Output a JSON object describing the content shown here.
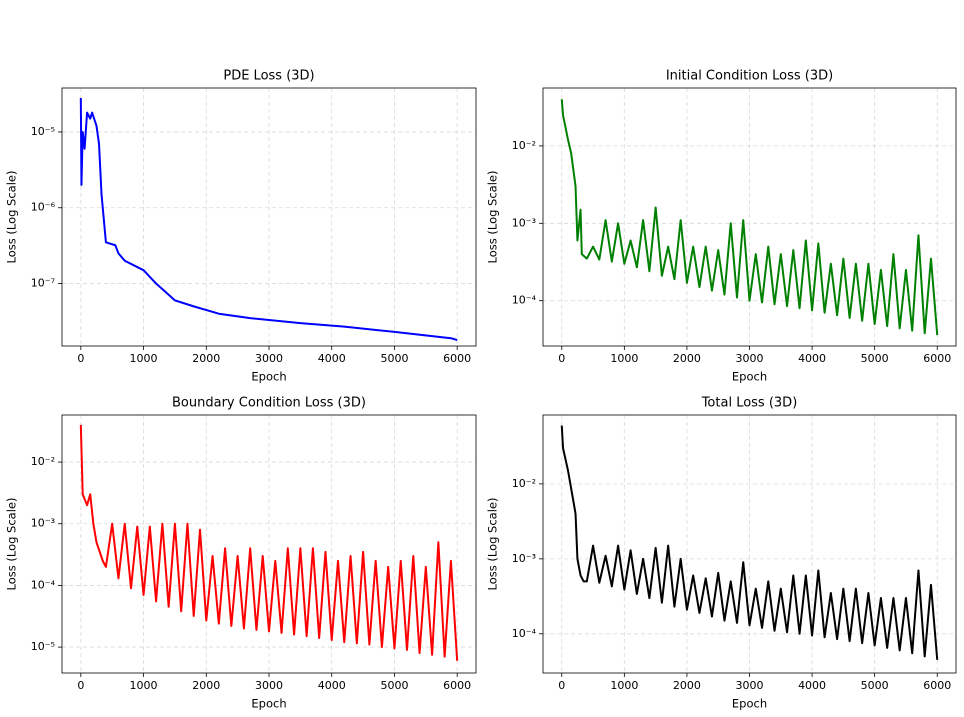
{
  "chart_data": [
    {
      "type": "line",
      "title": "PDE Loss (3D)",
      "xlabel": "Epoch",
      "ylabel": "Loss (Log Scale)",
      "color": "#0000ff",
      "yscale": "log",
      "grid": true,
      "x": [
        0,
        10,
        30,
        60,
        100,
        150,
        180,
        250,
        290,
        330,
        400,
        550,
        600,
        700,
        1000,
        1200,
        1500,
        1800,
        2200,
        2700,
        3500,
        4200,
        5000,
        5900,
        6000
      ],
      "values": [
        2.8e-05,
        2e-06,
        1e-05,
        6e-06,
        1.8e-05,
        1.5e-05,
        1.8e-05,
        1.2e-05,
        7e-06,
        1.5e-06,
        3.5e-07,
        3.2e-07,
        2.5e-07,
        2e-07,
        1.5e-07,
        1e-07,
        6e-08,
        5e-08,
        4e-08,
        3.5e-08,
        3e-08,
        2.7e-08,
        2.3e-08,
        1.9e-08,
        1.8e-08
      ],
      "xlim": [
        -300,
        6300
      ],
      "xticks": [
        0,
        1000,
        2000,
        3000,
        4000,
        5000,
        6000
      ],
      "ylim": [
        1.5e-08,
        3.8e-05
      ],
      "yticks": [
        {
          "value": 1e-07,
          "label": "10⁻⁷"
        },
        {
          "value": 1e-06,
          "label": "10⁻⁶"
        },
        {
          "value": 1e-05,
          "label": "10⁻⁵"
        }
      ]
    },
    {
      "type": "line",
      "title": "Initial Condition Loss (3D)",
      "xlabel": "Epoch",
      "ylabel": "Loss (Log Scale)",
      "color": "#008000",
      "yscale": "log",
      "grid": true,
      "x": [
        0,
        20,
        100,
        150,
        200,
        220,
        250,
        300,
        320,
        400,
        500,
        600,
        700,
        800,
        900,
        1000,
        1100,
        1200,
        1300,
        1400,
        1500,
        1600,
        1700,
        1800,
        1900,
        2000,
        2100,
        2200,
        2300,
        2400,
        2500,
        2600,
        2700,
        2800,
        2900,
        3000,
        3100,
        3200,
        3300,
        3400,
        3500,
        3600,
        3700,
        3800,
        3900,
        4000,
        4100,
        4200,
        4300,
        4400,
        4500,
        4600,
        4700,
        4800,
        4900,
        5000,
        5100,
        5200,
        5300,
        5400,
        5500,
        5600,
        5700,
        5800,
        5900,
        6000
      ],
      "values": [
        0.04,
        0.025,
        0.012,
        0.008,
        0.004,
        0.003,
        0.0006,
        0.0015,
        0.0004,
        0.00035,
        0.0005,
        0.00034,
        0.0011,
        0.00032,
        0.001,
        0.0003,
        0.0006,
        0.00027,
        0.0011,
        0.00024,
        0.0016,
        0.00021,
        0.0005,
        0.00019,
        0.0011,
        0.00017,
        0.0005,
        0.00015,
        0.0005,
        0.000135,
        0.00045,
        0.00012,
        0.001,
        0.00011,
        0.0011,
        0.0001,
        0.0004,
        9.5e-05,
        0.0005,
        9e-05,
        0.0004,
        8.5e-05,
        0.00045,
        8e-05,
        0.0006,
        7.5e-05,
        0.00055,
        7e-05,
        0.0003,
        6.5e-05,
        0.00035,
        6e-05,
        0.0003,
        5.5e-05,
        0.0003,
        5e-05,
        0.00025,
        4.7e-05,
        0.0004,
        4.4e-05,
        0.00025,
        4.1e-05,
        0.0007,
        3.8e-05,
        0.00035,
        3.6e-05
      ],
      "xlim": [
        -300,
        6300
      ],
      "xticks": [
        0,
        1000,
        2000,
        3000,
        4000,
        5000,
        6000
      ],
      "ylim": [
        2.6e-05,
        0.056
      ],
      "yticks": [
        {
          "value": 0.0001,
          "label": "10⁻⁴"
        },
        {
          "value": 0.001,
          "label": "10⁻³"
        },
        {
          "value": 0.01,
          "label": "10⁻²"
        }
      ]
    },
    {
      "type": "line",
      "title": "Boundary Condition Loss (3D)",
      "xlabel": "Epoch",
      "ylabel": "Loss (Log Scale)",
      "color": "#ff0000",
      "yscale": "log",
      "grid": true,
      "x": [
        0,
        30,
        100,
        150,
        200,
        250,
        350,
        400,
        500,
        600,
        700,
        800,
        900,
        1000,
        1100,
        1200,
        1300,
        1400,
        1500,
        1600,
        1700,
        1800,
        1900,
        2000,
        2100,
        2200,
        2300,
        2400,
        2500,
        2600,
        2700,
        2800,
        2900,
        3000,
        3100,
        3200,
        3300,
        3400,
        3500,
        3600,
        3700,
        3800,
        3900,
        4000,
        4100,
        4200,
        4300,
        4400,
        4500,
        4600,
        4700,
        4800,
        4900,
        5000,
        5100,
        5200,
        5300,
        5400,
        5500,
        5600,
        5700,
        5800,
        5900,
        6000
      ],
      "values": [
        0.04,
        0.003,
        0.002,
        0.003,
        0.001,
        0.0005,
        0.00025,
        0.0002,
        0.001,
        0.00013,
        0.001,
        9e-05,
        0.0009,
        7e-05,
        0.0009,
        5.5e-05,
        0.001,
        4.5e-05,
        0.001,
        3.8e-05,
        0.001,
        3.2e-05,
        0.0008,
        2.7e-05,
        0.0003,
        2.4e-05,
        0.0004,
        2.2e-05,
        0.0003,
        2e-05,
        0.0004,
        1.9e-05,
        0.0003,
        1.8e-05,
        0.00025,
        1.7e-05,
        0.0004,
        1.6e-05,
        0.0004,
        1.5e-05,
        0.0004,
        1.4e-05,
        0.00035,
        1.3e-05,
        0.00025,
        1.2e-05,
        0.0003,
        1.15e-05,
        0.00035,
        1.1e-05,
        0.00025,
        1e-05,
        0.0002,
        9.5e-06,
        0.00025,
        9e-06,
        0.0003,
        8e-06,
        0.0002,
        7.5e-06,
        0.0005,
        7e-06,
        0.00025,
        6e-06
      ],
      "xlim": [
        -300,
        6300
      ],
      "xticks": [
        0,
        1000,
        2000,
        3000,
        4000,
        5000,
        6000
      ],
      "ylim": [
        3.8e-06,
        0.058
      ],
      "yticks": [
        {
          "value": 1e-05,
          "label": "10⁻⁵"
        },
        {
          "value": 0.0001,
          "label": "10⁻⁴"
        },
        {
          "value": 0.001,
          "label": "10⁻³"
        },
        {
          "value": 0.01,
          "label": "10⁻²"
        }
      ]
    },
    {
      "type": "line",
      "title": "Total Loss (3D)",
      "xlabel": "Epoch",
      "ylabel": "Loss (Log Scale)",
      "color": "#000000",
      "yscale": "log",
      "grid": true,
      "x": [
        0,
        20,
        100,
        200,
        220,
        250,
        300,
        350,
        400,
        500,
        600,
        700,
        800,
        900,
        1000,
        1100,
        1200,
        1300,
        1400,
        1500,
        1600,
        1700,
        1800,
        1900,
        2000,
        2100,
        2200,
        2300,
        2400,
        2500,
        2600,
        2700,
        2800,
        2900,
        3000,
        3100,
        3200,
        3300,
        3400,
        3500,
        3600,
        3700,
        3800,
        3900,
        4000,
        4100,
        4200,
        4300,
        4400,
        4500,
        4600,
        4700,
        4800,
        4900,
        5000,
        5100,
        5200,
        5300,
        5400,
        5500,
        5600,
        5700,
        5800,
        5900,
        6000
      ],
      "values": [
        0.06,
        0.03,
        0.015,
        0.005,
        0.004,
        0.001,
        0.0006,
        0.0005,
        0.0005,
        0.0015,
        0.00048,
        0.0011,
        0.00043,
        0.0015,
        0.00039,
        0.0013,
        0.00034,
        0.001,
        0.0003,
        0.0014,
        0.00026,
        0.0015,
        0.00023,
        0.001,
        0.00021,
        0.0006,
        0.00019,
        0.00055,
        0.00017,
        0.00065,
        0.00015,
        0.0005,
        0.00014,
        0.0009,
        0.00013,
        0.0004,
        0.00012,
        0.0005,
        0.00011,
        0.0004,
        0.000105,
        0.0006,
        0.0001,
        0.0006,
        9.5e-05,
        0.0007,
        9e-05,
        0.00035,
        8.5e-05,
        0.0004,
        8e-05,
        0.0004,
        7.5e-05,
        0.00035,
        7e-05,
        0.0003,
        6.5e-05,
        0.0003,
        6e-05,
        0.0003,
        5.5e-05,
        0.0007,
        5e-05,
        0.00045,
        4.5e-05
      ],
      "xlim": [
        -300,
        6300
      ],
      "xticks": [
        0,
        1000,
        2000,
        3000,
        4000,
        5000,
        6000
      ],
      "ylim": [
        3e-05,
        0.083
      ],
      "yticks": [
        {
          "value": 0.0001,
          "label": "10⁻⁴"
        },
        {
          "value": 0.001,
          "label": "10⁻³"
        },
        {
          "value": 0.01,
          "label": "10⁻²"
        }
      ]
    }
  ]
}
